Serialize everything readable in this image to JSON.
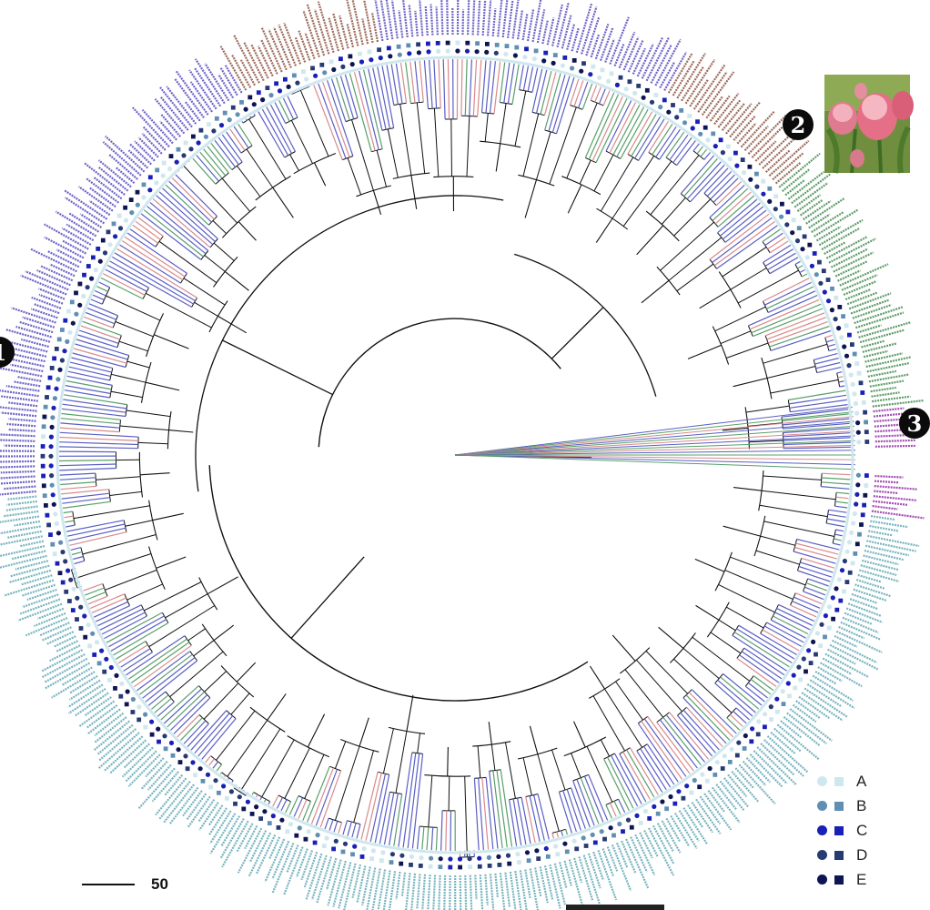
{
  "figure": {
    "scale_bar_label": "50",
    "badge_left": "1",
    "badge_right": "2",
    "badge_far_right": "3"
  },
  "legend": [
    {
      "label": "A",
      "color": "#cfe7ee"
    },
    {
      "label": "B",
      "color": "#5f8fb2"
    },
    {
      "label": "C",
      "color": "#1820b8"
    },
    {
      "label": "D",
      "color": "#263a74"
    },
    {
      "label": "E",
      "color": "#0d1552"
    }
  ],
  "branch_colors": {
    "blue": "#5a5fc4",
    "green": "#58a06a",
    "pink": "#d98a8a",
    "black": "#111111"
  },
  "label_colors": {
    "purple": "#6f63c7",
    "green": "#5f9c6a",
    "brown": "#9b6a5a",
    "teal": "#78b4bf",
    "magenta": "#a24bb4"
  }
}
